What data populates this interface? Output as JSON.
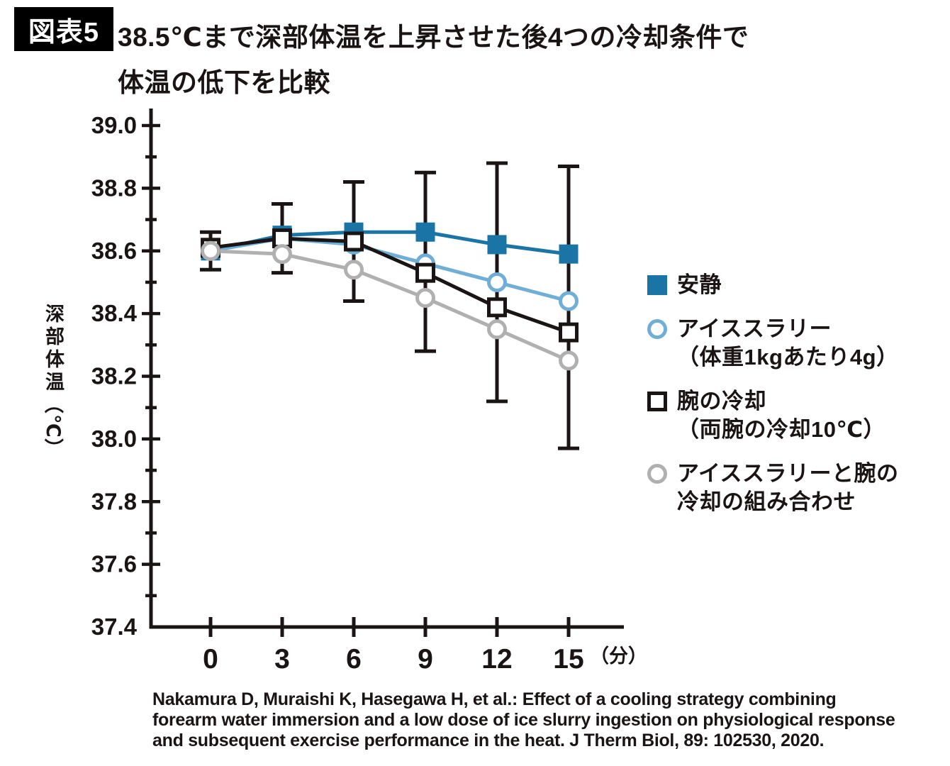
{
  "figure": {
    "tag": "図表5",
    "title_line1": "38.5℃まで深部体温を上昇させた後4つの冷却条件で",
    "title_line2": "体温の低下を比較"
  },
  "colors": {
    "rest": "#1A74A5",
    "slurry": "#6FAED6",
    "forearm": "#1A1414",
    "combined": "#B0B0B0",
    "axis": "#1A1414",
    "tag_bg": "#000000",
    "tag_text": "#FFFFFF"
  },
  "chart_data": {
    "type": "line",
    "x": [
      0,
      3,
      6,
      9,
      12,
      15
    ],
    "x_unit_label": "（分）",
    "ylabel_main": "深部体温",
    "ylabel_unit": "（℃）",
    "ylim": [
      37.4,
      39.0
    ],
    "ytick_major_step": 0.2,
    "ytick_minor_step": 0.1,
    "ytick_labels": [
      "37.4",
      "37.6",
      "37.8",
      "38.0",
      "38.2",
      "38.4",
      "38.6",
      "38.8",
      "39.0"
    ],
    "grid": false,
    "legend_position": "right",
    "series": [
      {
        "key": "rest",
        "name": "安静",
        "marker": "filled-square",
        "color": "#1A74A5",
        "values": [
          38.6,
          38.65,
          38.66,
          38.66,
          38.62,
          38.59
        ]
      },
      {
        "key": "slurry",
        "name": "アイススラリー（体重1kgあたり4g）",
        "marker": "open-circle",
        "color": "#6FAED6",
        "values": [
          38.6,
          38.64,
          38.62,
          38.56,
          38.5,
          38.44
        ]
      },
      {
        "key": "forearm",
        "name": "腕の冷却（両腕の冷却10℃）",
        "marker": "open-square",
        "color": "#1A1414",
        "values": [
          38.61,
          38.64,
          38.63,
          38.53,
          38.42,
          38.34
        ]
      },
      {
        "key": "combined",
        "name": "アイススラリーと腕の冷却の組み合わせ",
        "marker": "open-circle",
        "color": "#B0B0B0",
        "values": [
          38.6,
          38.59,
          38.54,
          38.45,
          38.35,
          38.25
        ]
      }
    ],
    "error_bars": {
      "color": "#1A1414",
      "high": [
        38.66,
        38.75,
        38.82,
        38.85,
        38.88,
        38.87
      ],
      "low": [
        38.54,
        38.53,
        38.44,
        38.28,
        38.12,
        37.97
      ]
    }
  },
  "legend": {
    "items": [
      {
        "label_line1": "安静",
        "label_line2": ""
      },
      {
        "label_line1": "アイススラリー",
        "label_line2": "（体重1kgあたり4g）"
      },
      {
        "label_line1": "腕の冷却",
        "label_line2": "（両腕の冷却10℃）"
      },
      {
        "label_line1": "アイススラリーと腕の",
        "label_line2": "冷却の組み合わせ"
      }
    ]
  },
  "citation": {
    "line1": "Nakamura D, Muraishi K, Hasegawa H, et al.: Effect of a cooling strategy combining",
    "line2": "forearm water immersion and a low dose of ice slurry ingestion on physiological response",
    "line3": "and subsequent exercise performance in the heat. J Therm Biol, 89: 102530, 2020."
  }
}
